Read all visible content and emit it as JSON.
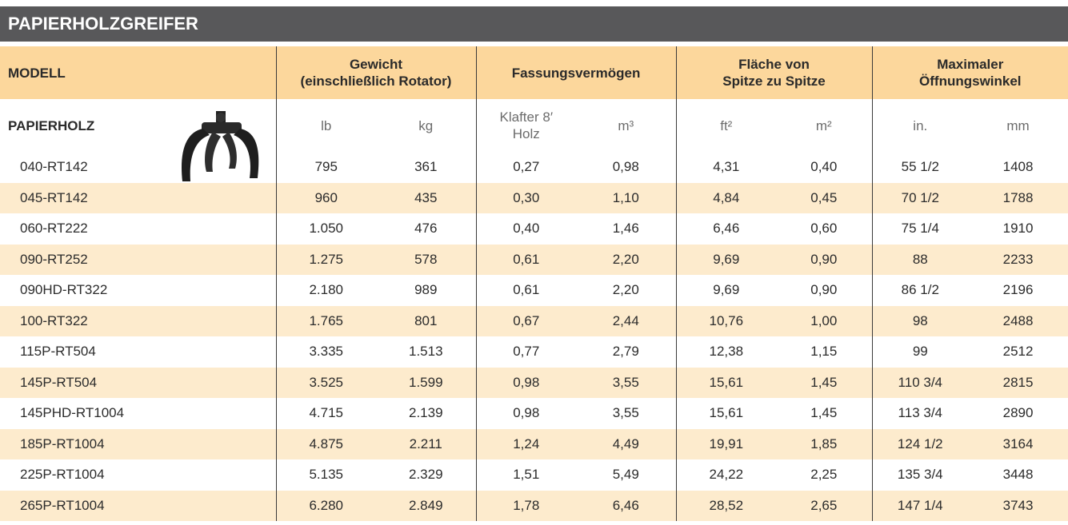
{
  "header": {
    "title": "PAPIERHOLZGREIFER"
  },
  "table": {
    "head": [
      "MODELL",
      "Gewicht\n(einschließlich Rotator)",
      "Fassungsvermögen",
      "Fläche von\nSpitze zu Spitze",
      "Maximaler\nÖffnungswinkel"
    ],
    "subhead": [
      "PAPIERHOLZ",
      "lb",
      "kg",
      "Klafter 8′\nHolz",
      "m³",
      "ft²",
      "m²",
      "in.",
      "mm"
    ],
    "rows": [
      [
        "040-RT142",
        "795",
        "361",
        "0,27",
        "0,98",
        "4,31",
        "0,40",
        "55 1/2",
        "1408"
      ],
      [
        "045-RT142",
        "960",
        "435",
        "0,30",
        "1,10",
        "4,84",
        "0,45",
        "70 1/2",
        "1788"
      ],
      [
        "060-RT222",
        "1.050",
        "476",
        "0,40",
        "1,46",
        "6,46",
        "0,60",
        "75 1/4",
        "1910"
      ],
      [
        "090-RT252",
        "1.275",
        "578",
        "0,61",
        "2,20",
        "9,69",
        "0,90",
        "88",
        "2233"
      ],
      [
        "090HD-RT322",
        "2.180",
        "989",
        "0,61",
        "2,20",
        "9,69",
        "0,90",
        "86 1/2",
        "2196"
      ],
      [
        "100-RT322",
        "1.765",
        "801",
        "0,67",
        "2,44",
        "10,76",
        "1,00",
        "98",
        "2488"
      ],
      [
        "115P-RT504",
        "3.335",
        "1.513",
        "0,77",
        "2,79",
        "12,38",
        "1,15",
        "99",
        "2512"
      ],
      [
        "145P-RT504",
        "3.525",
        "1.599",
        "0,98",
        "3,55",
        "15,61",
        "1,45",
        "110 3/4",
        "2815"
      ],
      [
        "145PHD-RT1004",
        "4.715",
        "2.139",
        "0,98",
        "3,55",
        "15,61",
        "1,45",
        "113 3/4",
        "2890"
      ],
      [
        "185P-RT1004",
        "4.875",
        "2.211",
        "1,24",
        "4,49",
        "19,91",
        "1,85",
        "124 1/2",
        "3164"
      ],
      [
        "225P-RT1004",
        "5.135",
        "2.329",
        "1,51",
        "5,49",
        "24,22",
        "2,25",
        "135 3/4",
        "3448"
      ],
      [
        "265P-RT1004",
        "6.280",
        "2.849",
        "1,78",
        "6,46",
        "28,52",
        "2,65",
        "147 1/4",
        "3743"
      ]
    ]
  }
}
